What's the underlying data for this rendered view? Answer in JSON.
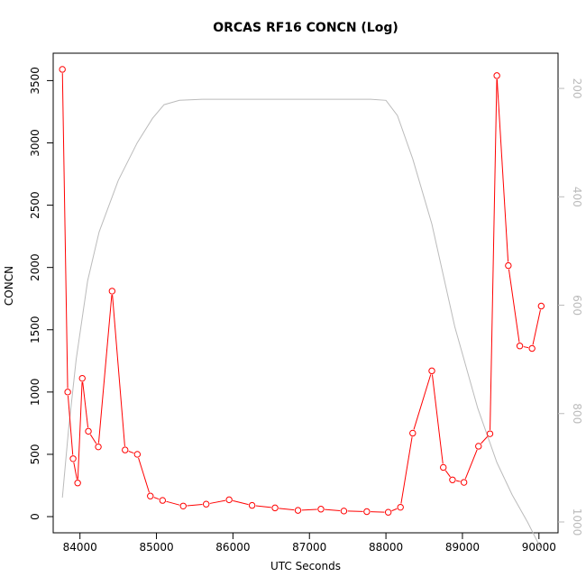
{
  "chart_data": {
    "type": "line",
    "title": "ORCAS RF16 CONCN (Log)",
    "xlabel": "UTC Seconds",
    "ylabel": "CONCN",
    "xlim": [
      83650,
      90250
    ],
    "ylim": [
      -130,
      3720
    ],
    "x_ticks": [
      84000,
      85000,
      86000,
      87000,
      88000,
      89000,
      90000
    ],
    "y_ticks": [
      0,
      500,
      1000,
      1500,
      2000,
      2500,
      3000,
      3500
    ],
    "right_axis": {
      "label": "",
      "ticks": [
        200,
        400,
        600,
        800,
        1000
      ],
      "inverted": true,
      "ylim": [
        1020,
        135
      ],
      "color": "#bbbbbb"
    },
    "grid": false,
    "series": [
      {
        "color": "#ff0000",
        "marker": "open-circle",
        "x": [
          83770,
          83840,
          83910,
          83970,
          84030,
          84110,
          84240,
          84420,
          84590,
          84750,
          84920,
          85080,
          85350,
          85650,
          85950,
          86250,
          86550,
          86850,
          87150,
          87450,
          87750,
          88030,
          88190,
          88350,
          88600,
          88750,
          88870,
          89020,
          89210,
          89360,
          89450,
          89600,
          89750,
          89910,
          90030
        ],
        "values": [
          3590,
          1000,
          465,
          270,
          1110,
          685,
          560,
          1810,
          535,
          500,
          165,
          130,
          85,
          100,
          135,
          90,
          70,
          50,
          60,
          45,
          40,
          35,
          75,
          670,
          1170,
          395,
          295,
          275,
          565,
          665,
          3540,
          2015,
          1370,
          1350,
          1690
        ]
      },
      {
        "color": "#bbbbbb",
        "axis": "right",
        "x": [
          83770,
          83850,
          83950,
          84100,
          84250,
          84500,
          84750,
          84950,
          85100,
          85300,
          85600,
          86000,
          86500,
          87000,
          87500,
          87800,
          88000,
          88150,
          88350,
          88600,
          88900,
          89200,
          89450,
          89650,
          89850,
          90030
        ],
        "values": [
          955,
          830,
          700,
          555,
          465,
          370,
          300,
          255,
          230,
          222,
          220,
          220,
          220,
          220,
          220,
          220,
          222,
          250,
          330,
          450,
          640,
          790,
          890,
          950,
          1000,
          1050
        ]
      }
    ]
  }
}
